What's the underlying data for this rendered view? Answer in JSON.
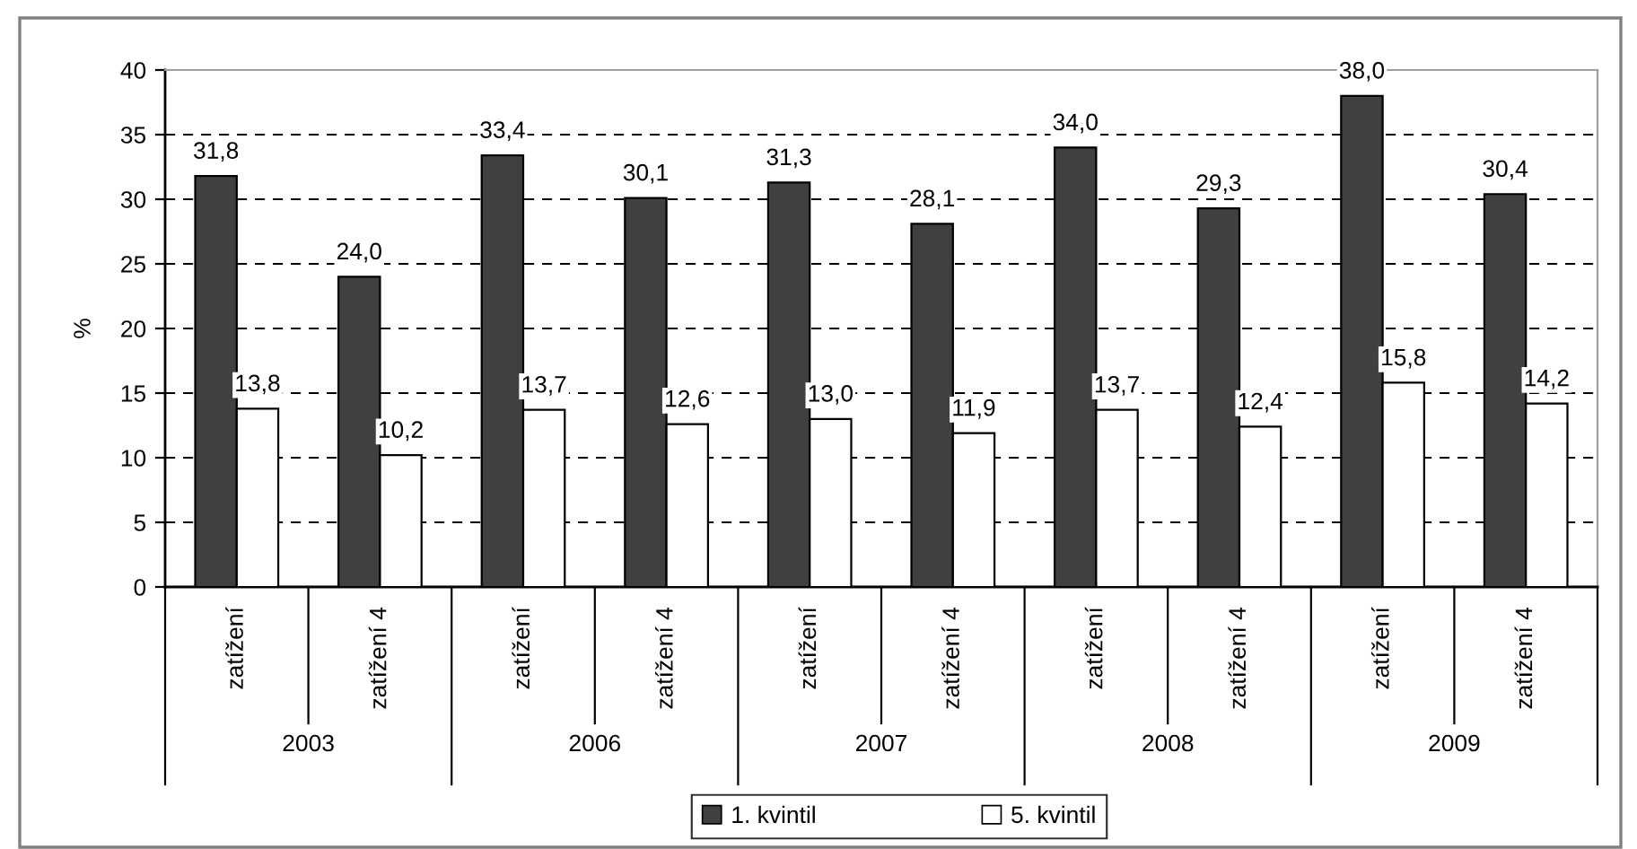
{
  "chart_data": {
    "type": "bar",
    "ylabel": "%",
    "categories": [
      "zatížení",
      "zatížení 4",
      "zatížení",
      "zatížení 4",
      "zatížení",
      "zatížení 4",
      "zatížení",
      "zatížení 4",
      "zatížení",
      "zatížení 4"
    ],
    "annotations": [
      "2003",
      "2006",
      "2007",
      "2008",
      "2009"
    ],
    "series": [
      {
        "name": "1. kvintil",
        "color": "#404040",
        "values": [
          31.8,
          24.0,
          33.4,
          30.1,
          31.3,
          28.1,
          34.0,
          29.3,
          38.0,
          30.4
        ],
        "value_labels": [
          "31,8",
          "24,0",
          "33,4",
          "30,1",
          "31,3",
          "28,1",
          "34,0",
          "29,3",
          "38,0",
          "30,4"
        ]
      },
      {
        "name": "5. kvintil",
        "color": "#ffffff",
        "values": [
          13.8,
          10.2,
          13.7,
          12.6,
          13.0,
          11.9,
          13.7,
          12.4,
          15.8,
          14.2
        ],
        "value_labels": [
          "13,8",
          "10,2",
          "13,7",
          "12,6",
          "13,0",
          "11,9",
          "13,7",
          "12,4",
          "15,8",
          "14,2"
        ]
      }
    ],
    "ylim": [
      0,
      40
    ],
    "yticks": [
      0,
      5,
      10,
      15,
      20,
      25,
      30,
      35,
      40
    ],
    "grid": "y",
    "legend": "bottom"
  }
}
